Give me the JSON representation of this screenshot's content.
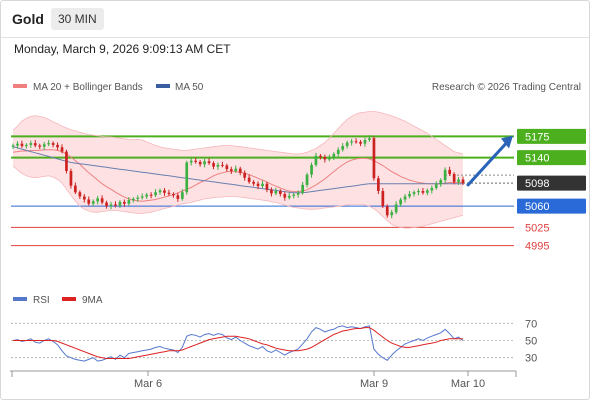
{
  "header": {
    "instrument": "Gold",
    "timeframe": "30 MIN",
    "timestamp": "Monday, March 9, 2026 9:09:13 AM CET"
  },
  "main_chart": {
    "legend": [
      {
        "label": "MA 20 + Bollinger Bands",
        "color": "#f08080"
      },
      {
        "label": "MA 50",
        "color": "#3a5fa0"
      }
    ],
    "credit": "Research © 2026 Trading Central"
  },
  "chart_data": [
    {
      "type": "candlestick",
      "title": "Gold",
      "ylim": [
        4968,
        5235
      ],
      "x_labels": [
        "Mar 6",
        "Mar 9",
        "Mar 10"
      ],
      "levels": [
        {
          "value": 5175,
          "label": "5175",
          "color": "#4caf1e",
          "kind": "resistance"
        },
        {
          "value": 5140,
          "label": "5140",
          "color": "#4caf1e",
          "kind": "resistance"
        },
        {
          "value": 5098,
          "label": "5098",
          "color": "#333333",
          "kind": "last"
        },
        {
          "value": 5060,
          "label": "5060",
          "color": "#2a6ad8",
          "kind": "pivot"
        },
        {
          "value": 5025,
          "label": "5025",
          "color": "#e04040",
          "kind": "support"
        },
        {
          "value": 4995,
          "label": "4995",
          "color": "#e04040",
          "kind": "support"
        }
      ],
      "close": [
        5160,
        5163,
        5159,
        5161,
        5164,
        5160,
        5158,
        5162,
        5164,
        5161,
        5157,
        5150,
        5118,
        5094,
        5083,
        5076,
        5071,
        5064,
        5068,
        5073,
        5066,
        5060,
        5063,
        5061,
        5067,
        5064,
        5070,
        5072,
        5074,
        5076,
        5079,
        5078,
        5083,
        5086,
        5082,
        5080,
        5078,
        5072,
        5083,
        5132,
        5135,
        5133,
        5129,
        5134,
        5131,
        5125,
        5128,
        5127,
        5121,
        5118,
        5122,
        5115,
        5107,
        5100,
        5097,
        5093,
        5097,
        5087,
        5081,
        5085,
        5080,
        5074,
        5077,
        5079,
        5082,
        5095,
        5112,
        5128,
        5143,
        5141,
        5137,
        5140,
        5146,
        5153,
        5159,
        5165,
        5167,
        5166,
        5163,
        5169,
        5172,
        5106,
        5085,
        5060,
        5045,
        5050,
        5063,
        5071,
        5076,
        5080,
        5083,
        5085,
        5082,
        5086,
        5090,
        5096,
        5103,
        5120,
        5113,
        5100,
        5104,
        5098
      ],
      "ma20": [
        5149,
        5150,
        5151,
        5151,
        5152,
        5152,
        5152,
        5153,
        5153,
        5153,
        5152,
        5150,
        5146,
        5141,
        5135,
        5129,
        5122,
        5115,
        5109,
        5103,
        5097,
        5092,
        5088,
        5083,
        5079,
        5075,
        5072,
        5070,
        5069,
        5068,
        5069,
        5070,
        5071,
        5073,
        5075,
        5077,
        5079,
        5082,
        5085,
        5088,
        5091,
        5095,
        5099,
        5102,
        5106,
        5110,
        5113,
        5115,
        5117,
        5117,
        5117,
        5116,
        5114,
        5112,
        5109,
        5106,
        5103,
        5100,
        5096,
        5093,
        5090,
        5087,
        5085,
        5084,
        5084,
        5085,
        5087,
        5091,
        5095,
        5100,
        5105,
        5111,
        5117,
        5123,
        5128,
        5133,
        5136,
        5138,
        5139,
        5139,
        5138,
        5135,
        5131,
        5127,
        5122,
        5117,
        5113,
        5109,
        5106,
        5103,
        5101,
        5099,
        5098,
        5097,
        5097,
        5097,
        5097,
        5098,
        5099,
        5099,
        5099,
        5099
      ],
      "ma50": [
        5158,
        5156,
        5154,
        5152,
        5150,
        5148,
        5146,
        5144,
        5142,
        5140,
        5138,
        5136,
        5134,
        5132,
        5131,
        5130,
        5129,
        5128,
        5127,
        5126,
        5125,
        5124,
        5123,
        5122,
        5121,
        5120,
        5119,
        5118,
        5117,
        5116,
        5115,
        5114,
        5113,
        5112,
        5111,
        5110,
        5109,
        5108,
        5107,
        5106,
        5105,
        5104,
        5103,
        5102,
        5101,
        5100,
        5099,
        5098,
        5097,
        5096,
        5095,
        5094,
        5093,
        5092,
        5091,
        5090,
        5089,
        5088,
        5087,
        5086,
        5085,
        5084,
        5083,
        5082,
        5082,
        5082,
        5083,
        5084,
        5085,
        5086,
        5087,
        5088,
        5089,
        5090,
        5091,
        5092,
        5093,
        5094,
        5095,
        5096,
        5097,
        5097,
        5097,
        5097,
        5097,
        5097,
        5097,
        5097,
        5097,
        5097,
        5097,
        5097,
        5097,
        5097,
        5097,
        5097,
        5097,
        5097,
        5097,
        5097,
        5097,
        5097
      ],
      "bb_upper": [
        5185,
        5192,
        5200,
        5205,
        5208,
        5209,
        5208,
        5206,
        5203,
        5199,
        5196,
        5192,
        5189,
        5186,
        5184,
        5182,
        5180,
        5178,
        5177,
        5176,
        5175,
        5174,
        5174,
        5173,
        5172,
        5171,
        5170,
        5170,
        5170,
        5169,
        5166,
        5163,
        5160,
        5158,
        5156,
        5155,
        5154,
        5153,
        5152,
        5152,
        5153,
        5154,
        5155,
        5156,
        5157,
        5158,
        5159,
        5160,
        5160,
        5160,
        5159,
        5158,
        5157,
        5156,
        5155,
        5154,
        5153,
        5152,
        5151,
        5150,
        5149,
        5148,
        5147,
        5146,
        5146,
        5147,
        5149,
        5152,
        5155,
        5160,
        5165,
        5172,
        5180,
        5188,
        5196,
        5203,
        5208,
        5212,
        5214,
        5215,
        5216,
        5216,
        5215,
        5213,
        5211,
        5209,
        5206,
        5203,
        5200,
        5196,
        5192,
        5188,
        5184,
        5180,
        5175,
        5170,
        5165,
        5160,
        5155,
        5150,
        5148,
        5146
      ],
      "bb_lower": [
        5126,
        5120,
        5114,
        5110,
        5108,
        5107,
        5108,
        5109,
        5110,
        5108,
        5104,
        5098,
        5088,
        5078,
        5068,
        5060,
        5055,
        5052,
        5050,
        5050,
        5051,
        5052,
        5053,
        5053,
        5052,
        5051,
        5050,
        5049,
        5048,
        5048,
        5049,
        5050,
        5052,
        5054,
        5056,
        5058,
        5060,
        5062,
        5064,
        5065,
        5066,
        5068,
        5070,
        5072,
        5073,
        5074,
        5075,
        5075,
        5076,
        5076,
        5076,
        5075,
        5074,
        5073,
        5072,
        5071,
        5070,
        5069,
        5067,
        5066,
        5064,
        5062,
        5060,
        5058,
        5057,
        5056,
        5055,
        5055,
        5055,
        5056,
        5057,
        5058,
        5059,
        5060,
        5061,
        5062,
        5063,
        5063,
        5063,
        5062,
        5060,
        5056,
        5050,
        5043,
        5036,
        5030,
        5027,
        5025,
        5024,
        5024,
        5025,
        5026,
        5027,
        5029,
        5031,
        5033,
        5035,
        5037,
        5039,
        5041,
        5043,
        5045
      ],
      "projection": {
        "from": 5095,
        "to": 5170
      }
    },
    {
      "type": "line",
      "title": "RSI",
      "ylim": [
        18,
        82
      ],
      "y_ticks": [
        70,
        50,
        30
      ],
      "series": [
        {
          "name": "RSI",
          "color": "#5577cc",
          "values": [
            50,
            51,
            49,
            50,
            52,
            48,
            47,
            50,
            52,
            49,
            45,
            38,
            32,
            30,
            28,
            27,
            26,
            28,
            30,
            26,
            27,
            29,
            31,
            28,
            33,
            30,
            35,
            36,
            37,
            38,
            39,
            40,
            42,
            43,
            41,
            40,
            39,
            36,
            42,
            55,
            57,
            56,
            54,
            57,
            58,
            56,
            58,
            57,
            53,
            51,
            54,
            50,
            47,
            44,
            42,
            40,
            43,
            38,
            36,
            39,
            36,
            33,
            36,
            38,
            40,
            46,
            52,
            60,
            65,
            63,
            60,
            62,
            63,
            66,
            67,
            65,
            66,
            65,
            64,
            66,
            67,
            40,
            34,
            30,
            27,
            33,
            38,
            42,
            46,
            48,
            50,
            52,
            50,
            53,
            55,
            57,
            59,
            63,
            58,
            52,
            54,
            50
          ]
        },
        {
          "name": "9MA",
          "color": "#dd2222",
          "values": [
            50,
            50,
            50,
            50,
            50,
            50,
            50,
            50,
            50,
            50,
            49,
            47,
            45,
            43,
            41,
            39,
            37,
            35,
            33,
            31,
            30,
            29,
            29,
            29,
            29,
            29,
            29,
            30,
            31,
            32,
            33,
            34,
            35,
            36,
            37,
            38,
            38,
            38,
            39,
            41,
            43,
            45,
            47,
            49,
            51,
            52,
            53,
            54,
            55,
            55,
            55,
            54,
            53,
            52,
            50,
            48,
            46,
            45,
            43,
            41,
            40,
            39,
            38,
            38,
            38,
            39,
            40,
            42,
            45,
            48,
            51,
            54,
            57,
            59,
            61,
            62,
            63,
            64,
            64,
            65,
            65,
            62,
            58,
            54,
            50,
            47,
            45,
            43,
            42,
            42,
            43,
            44,
            45,
            46,
            47,
            48,
            50,
            51,
            52,
            52,
            52,
            52
          ]
        }
      ]
    }
  ],
  "rsi_legend": [
    {
      "label": "RSI",
      "color": "#5577cc"
    },
    {
      "label": "9MA",
      "color": "#dd2222"
    }
  ],
  "colors": {
    "up": "#3cb043",
    "down": "#cc2222",
    "band_fill": "#fde1e3",
    "resistance": "#4caf1e",
    "pivot": "#2a6ad8",
    "support": "#e04040"
  }
}
